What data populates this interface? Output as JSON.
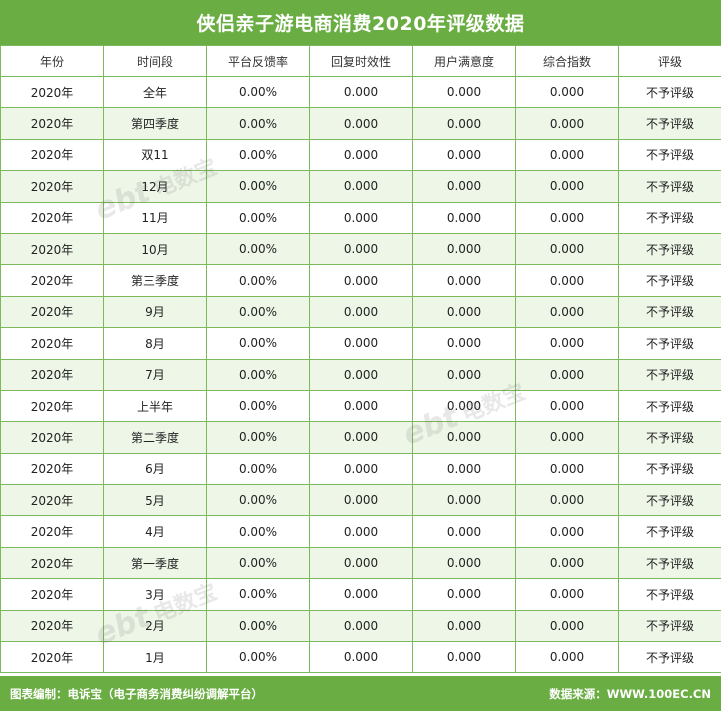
{
  "title": "侠侣亲子游电商消费2020年评级数据",
  "columns": [
    "年份",
    "时间段",
    "平台反馈率",
    "回复时效性",
    "用户满意度",
    "综合指数",
    "评级"
  ],
  "rows": [
    [
      "2020年",
      "全年",
      "0.00%",
      "0.000",
      "0.000",
      "0.000",
      "不予评级"
    ],
    [
      "2020年",
      "第四季度",
      "0.00%",
      "0.000",
      "0.000",
      "0.000",
      "不予评级"
    ],
    [
      "2020年",
      "双11",
      "0.00%",
      "0.000",
      "0.000",
      "0.000",
      "不予评级"
    ],
    [
      "2020年",
      "12月",
      "0.00%",
      "0.000",
      "0.000",
      "0.000",
      "不予评级"
    ],
    [
      "2020年",
      "11月",
      "0.00%",
      "0.000",
      "0.000",
      "0.000",
      "不予评级"
    ],
    [
      "2020年",
      "10月",
      "0.00%",
      "0.000",
      "0.000",
      "0.000",
      "不予评级"
    ],
    [
      "2020年",
      "第三季度",
      "0.00%",
      "0.000",
      "0.000",
      "0.000",
      "不予评级"
    ],
    [
      "2020年",
      "9月",
      "0.00%",
      "0.000",
      "0.000",
      "0.000",
      "不予评级"
    ],
    [
      "2020年",
      "8月",
      "0.00%",
      "0.000",
      "0.000",
      "0.000",
      "不予评级"
    ],
    [
      "2020年",
      "7月",
      "0.00%",
      "0.000",
      "0.000",
      "0.000",
      "不予评级"
    ],
    [
      "2020年",
      "上半年",
      "0.00%",
      "0.000",
      "0.000",
      "0.000",
      "不予评级"
    ],
    [
      "2020年",
      "第二季度",
      "0.00%",
      "0.000",
      "0.000",
      "0.000",
      "不予评级"
    ],
    [
      "2020年",
      "6月",
      "0.00%",
      "0.000",
      "0.000",
      "0.000",
      "不予评级"
    ],
    [
      "2020年",
      "5月",
      "0.00%",
      "0.000",
      "0.000",
      "0.000",
      "不予评级"
    ],
    [
      "2020年",
      "4月",
      "0.00%",
      "0.000",
      "0.000",
      "0.000",
      "不予评级"
    ],
    [
      "2020年",
      "第一季度",
      "0.00%",
      "0.000",
      "0.000",
      "0.000",
      "不予评级"
    ],
    [
      "2020年",
      "3月",
      "0.00%",
      "0.000",
      "0.000",
      "0.000",
      "不予评级"
    ],
    [
      "2020年",
      "2月",
      "0.00%",
      "0.000",
      "0.000",
      "0.000",
      "不予评级"
    ],
    [
      "2020年",
      "1月",
      "0.00%",
      "0.000",
      "0.000",
      "0.000",
      "不予评级"
    ]
  ],
  "footer": {
    "left": "图表编制：电诉宝（电子商务消费纠纷调解平台）",
    "right": "数据来源：WWW.100EC.CN"
  },
  "watermark": {
    "mark": "ebt",
    "brand": "电数宝"
  },
  "colors": {
    "header_green": "#6aad43",
    "border_green": "#7cb95a",
    "stripe": "#eef6e8"
  }
}
